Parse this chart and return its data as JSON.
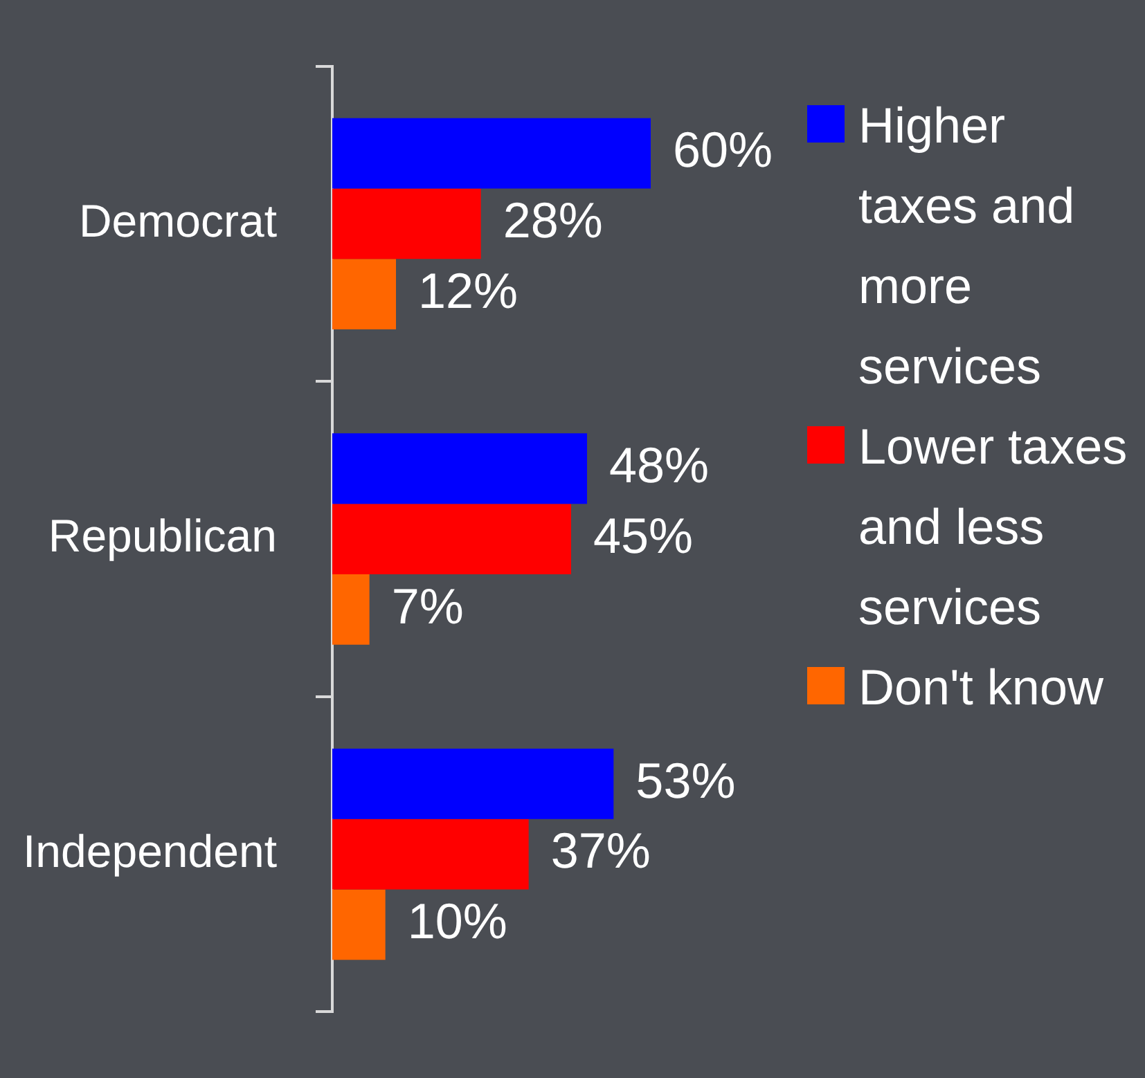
{
  "chart_data": {
    "type": "bar",
    "orientation": "horizontal",
    "categories": [
      "Democrat",
      "Republican",
      "Independent"
    ],
    "series": [
      {
        "name": "Higher taxes and more services",
        "color": "#0000ff",
        "values": [
          60,
          48,
          53
        ],
        "value_labels": [
          "60%",
          "48%",
          "53%"
        ]
      },
      {
        "name": "Lower taxes and less services",
        "color": "#ff0000",
        "values": [
          28,
          45,
          37
        ],
        "value_labels": [
          "28%",
          "45%",
          "37%"
        ]
      },
      {
        "name": "Don't know",
        "color": "#ff6600",
        "values": [
          12,
          7,
          10
        ],
        "value_labels": [
          "12%",
          "7%",
          "10%"
        ]
      }
    ],
    "legend": "right",
    "grid": false,
    "tick_labels": "y"
  }
}
